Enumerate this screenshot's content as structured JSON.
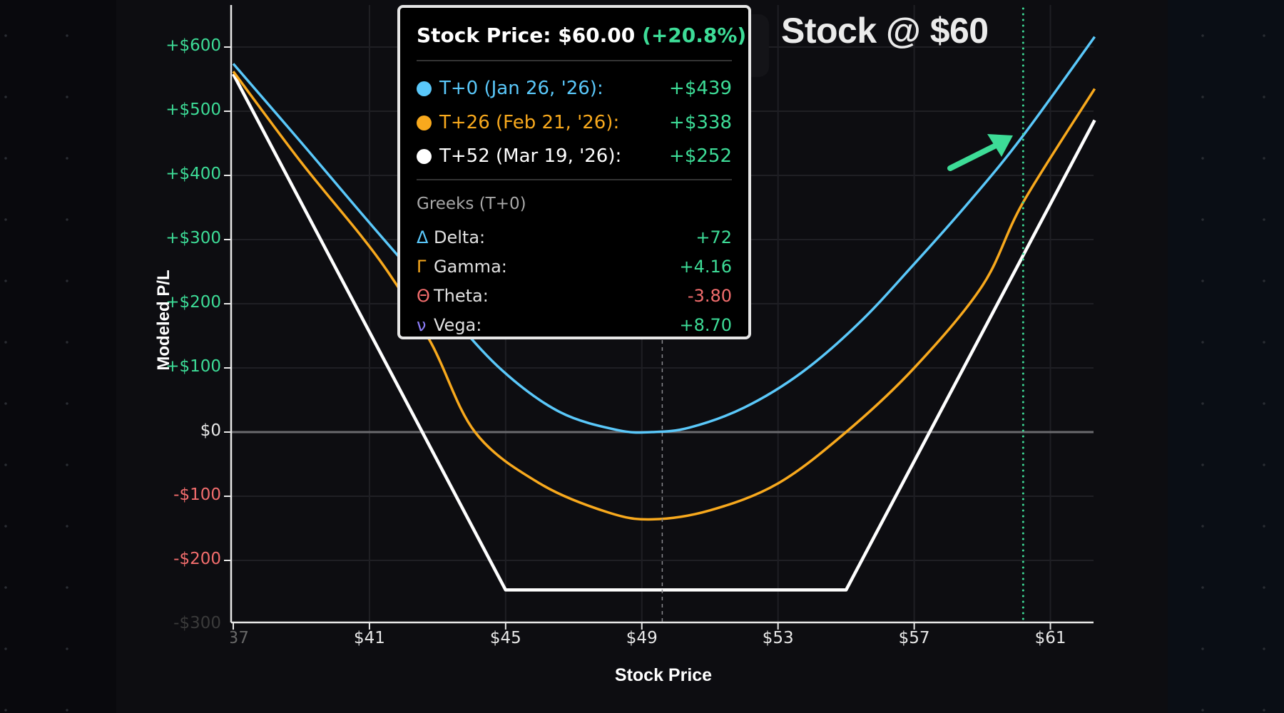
{
  "chart_data": {
    "type": "line",
    "title": "",
    "xlabel": "Stock Price",
    "ylabel": "Modeled P/L",
    "xlim": [
      37,
      62.3
    ],
    "ylim": [
      -300,
      665
    ],
    "grid": true,
    "x_ticks": [
      "$37",
      "$41",
      "$45",
      "$49",
      "$53",
      "$57",
      "$61"
    ],
    "x_tick_values": [
      37,
      41,
      45,
      49,
      53,
      57,
      61
    ],
    "y_ticks": [
      {
        "label": "+$600",
        "value": 600,
        "color": "#3ddc97"
      },
      {
        "label": "+$500",
        "value": 500,
        "color": "#3ddc97"
      },
      {
        "label": "+$400",
        "value": 400,
        "color": "#3ddc97"
      },
      {
        "label": "+$300",
        "value": 300,
        "color": "#3ddc97"
      },
      {
        "label": "+$200",
        "value": 200,
        "color": "#3ddc97"
      },
      {
        "label": "+$100",
        "value": 100,
        "color": "#3ddc97"
      },
      {
        "label": "$0",
        "value": 0,
        "color": "#e8e8e8"
      },
      {
        "label": "-$100",
        "value": -100,
        "color": "#f26d6d"
      },
      {
        "label": "-$200",
        "value": -200,
        "color": "#f26d6d"
      },
      {
        "label": "-$300",
        "value": -300,
        "color": "#3a3a3a"
      }
    ],
    "series": [
      {
        "name": "T+0 (Jan 26, '26)",
        "color": "#5ac8fa",
        "x": [
          37.0,
          39.0,
          41.1,
          43.2,
          44.9,
          46.6,
          48.3,
          49.3,
          50.4,
          52.0,
          53.7,
          55.4,
          57.0,
          58.7,
          60.2,
          62.3
        ],
        "y": [
          574,
          451,
          320,
          193,
          96,
          31,
          3,
          0,
          7,
          38,
          93,
          171,
          262,
          364,
          462,
          616
        ]
      },
      {
        "name": "T+26 (Feb 21, '26)",
        "color": "#f8a91d",
        "x": [
          37.0,
          39.0,
          41.3,
          42.8,
          44.1,
          46.0,
          48.0,
          49.3,
          51.0,
          53.0,
          55.0,
          57.0,
          59.0,
          60.2,
          62.3
        ],
        "y": [
          562,
          420,
          268,
          140,
          0,
          -80,
          -125,
          -136,
          -122,
          -80,
          0,
          100,
          228,
          358,
          535
        ]
      },
      {
        "name": "T+52 (Mar 19, '26)",
        "color": "#ffffff",
        "x": [
          37.0,
          45.0,
          55.0,
          62.3
        ],
        "y": [
          558,
          -246,
          -246,
          486
        ]
      }
    ],
    "markers": {
      "cursor_price": 49.6,
      "selected_price": 60.2,
      "selected_color": "#3ddc97"
    },
    "annotation": "Stock @ $60"
  },
  "tooltip": {
    "title_prefix": "Stock Price: $60.00 ",
    "title_change": "(+20.8%)",
    "rows": [
      {
        "label": "T+0 (Jan 26, '26):",
        "value": "+$439",
        "color": "#5ac8fa"
      },
      {
        "label": "T+26 (Feb 21, '26):",
        "value": "+$338",
        "color": "#f8a91d"
      },
      {
        "label": "T+52 (Mar 19, '26):",
        "value": "+$252",
        "color": "#ffffff"
      }
    ],
    "greeks_header": "Greeks (T+0)",
    "greeks": [
      {
        "symbol": "Δ",
        "label": "Delta:",
        "value": "+72",
        "sym_color": "#5ac8fa",
        "val_color": "#3ddc97"
      },
      {
        "symbol": "Γ",
        "label": "Gamma:",
        "value": "+4.16",
        "sym_color": "#f8a91d",
        "val_color": "#3ddc97"
      },
      {
        "symbol": "Θ",
        "label": "Theta:",
        "value": "-3.80",
        "sym_color": "#f26d6d",
        "val_color": "#f26d6d"
      },
      {
        "symbol": "ν",
        "label": "Vega:",
        "value": "+8.70",
        "sym_color": "#8b7cf6",
        "val_color": "#3ddc97"
      }
    ]
  },
  "annotation": {
    "text": "Stock @ $60",
    "arrow_color": "#3ddc97"
  },
  "axes": {
    "xlabel": "Stock Price",
    "ylabel": "Modeled P/L"
  }
}
